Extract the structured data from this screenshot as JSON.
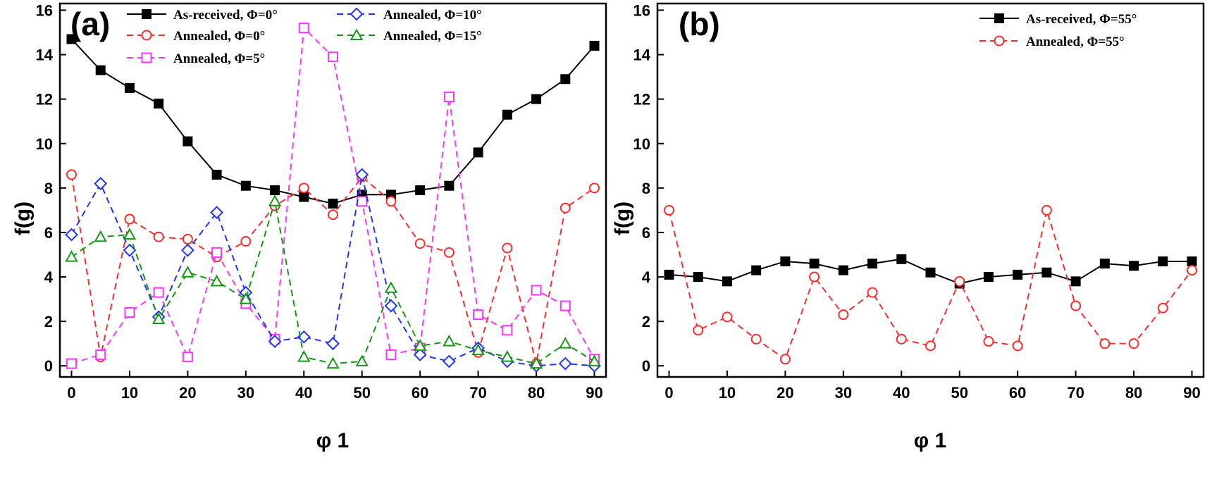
{
  "chart_data": [
    {
      "type": "line",
      "panel_label": "(a)",
      "xlabel": "φ 1",
      "ylabel": "f(g)",
      "xlim": [
        -2,
        92
      ],
      "ylim": [
        -0.5,
        16.3
      ],
      "xticks": [
        0,
        10,
        20,
        30,
        40,
        50,
        60,
        70,
        80,
        90
      ],
      "yticks": [
        0,
        2,
        4,
        6,
        8,
        10,
        12,
        14,
        16
      ],
      "legend": "top, two columns",
      "x": [
        0,
        5,
        10,
        15,
        20,
        25,
        30,
        35,
        40,
        45,
        50,
        55,
        60,
        65,
        70,
        75,
        80,
        85,
        90
      ],
      "series": [
        {
          "name": "As-received, Φ=0°",
          "color": "#000000",
          "marker": "filled-square",
          "line": "solid",
          "values": [
            14.7,
            13.3,
            12.5,
            11.8,
            10.1,
            8.6,
            8.1,
            7.9,
            7.6,
            7.3,
            7.7,
            7.7,
            7.9,
            8.1,
            9.6,
            11.3,
            12.0,
            12.9,
            14.4
          ]
        },
        {
          "name": "Annealed, Φ=0°",
          "color": "#ff2a2a",
          "marker": "open-circle",
          "line": "dashed",
          "values": [
            8.6,
            0.4,
            6.6,
            5.8,
            5.7,
            4.9,
            5.6,
            7.2,
            8.0,
            6.8,
            8.5,
            7.4,
            5.5,
            5.1,
            0.6,
            5.3,
            0.1,
            7.1,
            8.0
          ]
        },
        {
          "name": "Annealed, Φ=5°",
          "color": "#ff33ff",
          "marker": "open-square",
          "line": "dashed",
          "values": [
            0.1,
            0.5,
            2.4,
            3.3,
            0.4,
            5.1,
            2.8,
            1.2,
            15.2,
            13.9,
            7.4,
            0.5,
            0.8,
            12.1,
            2.3,
            1.6,
            3.4,
            2.7,
            0.3
          ]
        },
        {
          "name": "Annealed, Φ=10°",
          "color": "#2233ff",
          "marker": "open-diamond",
          "line": "dashed",
          "values": [
            5.9,
            8.2,
            5.2,
            2.2,
            5.2,
            6.9,
            3.3,
            1.1,
            1.3,
            1.0,
            8.6,
            2.7,
            0.5,
            0.2,
            0.8,
            0.2,
            0.0,
            0.1,
            0.0
          ]
        },
        {
          "name": "Annealed, Φ=15°",
          "color": "#119911",
          "marker": "open-triangle",
          "line": "dashed",
          "values": [
            4.9,
            5.8,
            5.9,
            2.1,
            4.2,
            3.8,
            3.0,
            7.4,
            0.4,
            0.1,
            0.2,
            3.5,
            0.9,
            1.1,
            0.7,
            0.4,
            0.1,
            1.0,
            0.2
          ]
        }
      ]
    },
    {
      "type": "line",
      "panel_label": "(b)",
      "xlabel": "φ 1",
      "ylabel": "f(g)",
      "xlim": [
        -2,
        92
      ],
      "ylim": [
        -0.5,
        16.3
      ],
      "xticks": [
        0,
        10,
        20,
        30,
        40,
        50,
        60,
        70,
        80,
        90
      ],
      "yticks": [
        0,
        2,
        4,
        6,
        8,
        10,
        12,
        14,
        16
      ],
      "legend": "top-right",
      "x": [
        0,
        5,
        10,
        15,
        20,
        25,
        30,
        35,
        40,
        45,
        50,
        55,
        60,
        65,
        70,
        75,
        80,
        85,
        90
      ],
      "series": [
        {
          "name": "As-received, Φ=55°",
          "color": "#000000",
          "marker": "filled-square",
          "line": "solid",
          "values": [
            4.1,
            4.0,
            3.8,
            4.3,
            4.7,
            4.6,
            4.3,
            4.6,
            4.8,
            4.2,
            3.7,
            4.0,
            4.1,
            4.2,
            3.8,
            4.6,
            4.5,
            4.7,
            4.7
          ]
        },
        {
          "name": "Annealed, Φ=55°",
          "color": "#ff2a2a",
          "marker": "open-circle",
          "line": "dashed",
          "values": [
            7.0,
            1.6,
            2.2,
            1.2,
            0.3,
            4.0,
            2.3,
            3.3,
            1.2,
            0.9,
            3.8,
            1.1,
            0.9,
            7.0,
            2.7,
            1.0,
            1.0,
            2.6,
            4.3
          ]
        }
      ]
    }
  ]
}
